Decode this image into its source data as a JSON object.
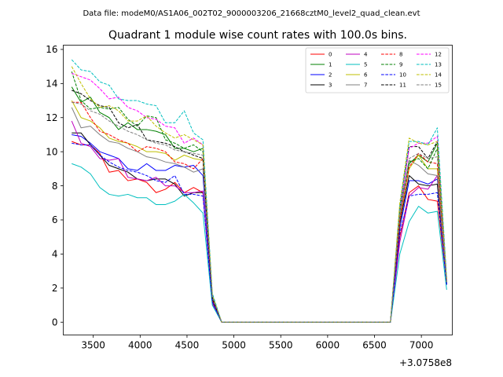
{
  "chart_data": {
    "type": "line",
    "suptitle": "Data file: modeM0/AS1A06_002T02_9000003206_21668cztM0_level2_quad_clean.evt",
    "title": "Quadrant 1 module wise count rates with 100.0s bins.",
    "xlabel": "",
    "ylabel": "",
    "x_offset_label": "+3.0758e8",
    "xlim": [
      3180,
      7330
    ],
    "ylim": [
      -0.75,
      16.25
    ],
    "xticks": [
      3500,
      4000,
      4500,
      5000,
      5500,
      6000,
      6500,
      7000
    ],
    "yticks": [
      0,
      2,
      4,
      6,
      8,
      10,
      12,
      14,
      16
    ],
    "legend_location": "upper right",
    "legend_columns": 4,
    "x": [
      3270,
      3370,
      3470,
      3570,
      3670,
      3770,
      3870,
      3970,
      4070,
      4170,
      4270,
      4370,
      4470,
      4570,
      4670,
      4770,
      4870,
      6670,
      6770,
      6870,
      6970,
      7070,
      7170,
      7270
    ],
    "plateau": {
      "x_start": 4870,
      "x_end": 6670,
      "value": 0
    },
    "series": [
      {
        "name": "0",
        "color": "#ff0000",
        "dash": "solid",
        "values": [
          10.6,
          10.4,
          10.4,
          9.9,
          8.8,
          8.9,
          8.3,
          8.4,
          8.2,
          7.6,
          7.8,
          8.2,
          7.6,
          7.9,
          7.6,
          1.2,
          0,
          0,
          5.0,
          7.6,
          8.0,
          7.2,
          7.1,
          2.3
        ]
      },
      {
        "name": "1",
        "color": "#008000",
        "dash": "solid",
        "values": [
          13.8,
          12.9,
          13.2,
          12.3,
          12.0,
          11.3,
          11.7,
          11.3,
          11.3,
          11.2,
          11.0,
          10.2,
          10.2,
          10.0,
          10.2,
          1.5,
          0,
          0,
          6.5,
          9.3,
          9.8,
          9.4,
          10.5,
          2.3
        ]
      },
      {
        "name": "2",
        "color": "#0000ff",
        "dash": "solid",
        "values": [
          11.0,
          10.9,
          10.5,
          10.0,
          9.8,
          9.6,
          9.0,
          8.9,
          9.3,
          8.9,
          8.9,
          9.2,
          9.1,
          9.2,
          8.6,
          1.3,
          0,
          0,
          5.5,
          8.3,
          8.3,
          8.1,
          8.4,
          2.2
        ]
      },
      {
        "name": "3",
        "color": "#000000",
        "dash": "solid",
        "values": [
          11.1,
          11.1,
          10.4,
          9.8,
          9.2,
          9.0,
          8.8,
          8.4,
          8.3,
          8.4,
          8.4,
          8.1,
          7.4,
          7.6,
          7.6,
          1.1,
          0,
          0,
          5.8,
          8.6,
          8.1,
          8.0,
          8.1,
          2.2
        ]
      },
      {
        "name": "4",
        "color": "#bf00bf",
        "dash": "solid",
        "values": [
          11.8,
          10.5,
          10.3,
          9.6,
          9.5,
          9.6,
          8.5,
          8.4,
          8.3,
          8.5,
          8.0,
          8.0,
          7.6,
          7.6,
          7.7,
          1.1,
          0,
          0,
          4.7,
          7.4,
          7.9,
          7.8,
          8.6,
          2.2
        ]
      },
      {
        "name": "5",
        "color": "#00bfbf",
        "dash": "solid",
        "values": [
          9.3,
          9.1,
          8.7,
          7.9,
          7.5,
          7.4,
          7.5,
          7.3,
          7.3,
          6.9,
          6.9,
          7.1,
          7.5,
          7.0,
          6.4,
          1.0,
          0,
          0,
          4.0,
          5.9,
          6.8,
          6.4,
          6.5,
          1.9
        ]
      },
      {
        "name": "6",
        "color": "#bfbf00",
        "dash": "solid",
        "values": [
          13.0,
          12.0,
          11.8,
          11.4,
          10.8,
          10.6,
          10.5,
          10.3,
          10.0,
          10.0,
          9.9,
          9.5,
          9.8,
          9.6,
          9.5,
          1.4,
          0,
          0,
          6.0,
          9.0,
          9.8,
          9.0,
          9.0,
          2.3
        ]
      },
      {
        "name": "7",
        "color": "#808080",
        "dash": "solid",
        "values": [
          12.6,
          11.4,
          11.5,
          11.0,
          10.6,
          10.5,
          10.2,
          10.0,
          9.7,
          9.6,
          9.4,
          9.3,
          9.1,
          8.8,
          9.0,
          1.4,
          0,
          0,
          6.2,
          9.5,
          9.2,
          8.7,
          8.6,
          2.3
        ]
      },
      {
        "name": "8",
        "color": "#ff0000",
        "dash": "dashed",
        "values": [
          12.9,
          12.9,
          12.0,
          11.2,
          11.0,
          10.7,
          10.5,
          10.0,
          10.3,
          10.2,
          10.0,
          9.4,
          9.3,
          9.0,
          9.6,
          1.3,
          0,
          0,
          6.0,
          9.1,
          9.9,
          9.4,
          9.3,
          2.4
        ]
      },
      {
        "name": "9",
        "color": "#008000",
        "dash": "dashed",
        "values": [
          14.7,
          13.0,
          12.5,
          12.6,
          12.5,
          12.6,
          11.9,
          11.5,
          12.1,
          12.0,
          10.7,
          10.5,
          10.2,
          10.4,
          10.0,
          1.5,
          0,
          0,
          6.7,
          9.4,
          9.6,
          9.0,
          10.2,
          2.4
        ]
      },
      {
        "name": "10",
        "color": "#0000ff",
        "dash": "dashed",
        "values": [
          10.5,
          10.4,
          10.4,
          9.8,
          9.4,
          9.1,
          8.9,
          8.8,
          8.6,
          8.3,
          8.2,
          8.6,
          7.5,
          7.5,
          7.4,
          1.2,
          0,
          0,
          5.2,
          7.4,
          7.5,
          7.5,
          7.6,
          2.2
        ]
      },
      {
        "name": "11",
        "color": "#000000",
        "dash": "dashed",
        "values": [
          13.6,
          13.4,
          13.0,
          12.7,
          12.6,
          11.7,
          11.4,
          11.6,
          10.7,
          10.6,
          10.5,
          10.3,
          10.0,
          9.8,
          9.6,
          1.4,
          0,
          0,
          6.8,
          10.3,
          10.3,
          9.6,
          10.6,
          2.4
        ]
      },
      {
        "name": "12",
        "color": "#ff00ff",
        "dash": "dashed",
        "values": [
          14.6,
          14.4,
          14.2,
          13.7,
          13.1,
          13.2,
          12.6,
          12.4,
          12.0,
          11.9,
          11.5,
          11.4,
          10.5,
          10.8,
          10.4,
          1.6,
          0,
          0,
          6.5,
          10.2,
          10.5,
          10.5,
          10.9,
          2.5
        ]
      },
      {
        "name": "13",
        "color": "#00bfbf",
        "dash": "dashed",
        "values": [
          15.4,
          14.8,
          14.7,
          14.1,
          13.9,
          13.1,
          13.0,
          13.0,
          12.8,
          12.7,
          11.7,
          11.7,
          12.4,
          11.1,
          10.7,
          1.7,
          0,
          0,
          6.8,
          10.6,
          10.6,
          10.4,
          11.4,
          2.6
        ]
      },
      {
        "name": "14",
        "color": "#bfbf00",
        "dash": "dashed",
        "values": [
          15.0,
          14.0,
          13.1,
          12.6,
          12.7,
          12.4,
          11.8,
          11.8,
          12.1,
          11.5,
          11.1,
          10.8,
          11.0,
          10.7,
          10.4,
          1.6,
          0,
          0,
          7.0,
          10.8,
          10.5,
          10.4,
          10.6,
          2.5
        ]
      },
      {
        "name": "15",
        "color": "#808080",
        "dash": "dashed",
        "values": [
          12.9,
          12.8,
          12.4,
          12.2,
          11.8,
          11.5,
          11.2,
          11.0,
          10.7,
          10.5,
          10.4,
          10.1,
          10.0,
          9.9,
          9.8,
          1.5,
          0,
          0,
          6.4,
          9.6,
          9.9,
          9.6,
          9.7,
          2.4
        ]
      }
    ]
  }
}
